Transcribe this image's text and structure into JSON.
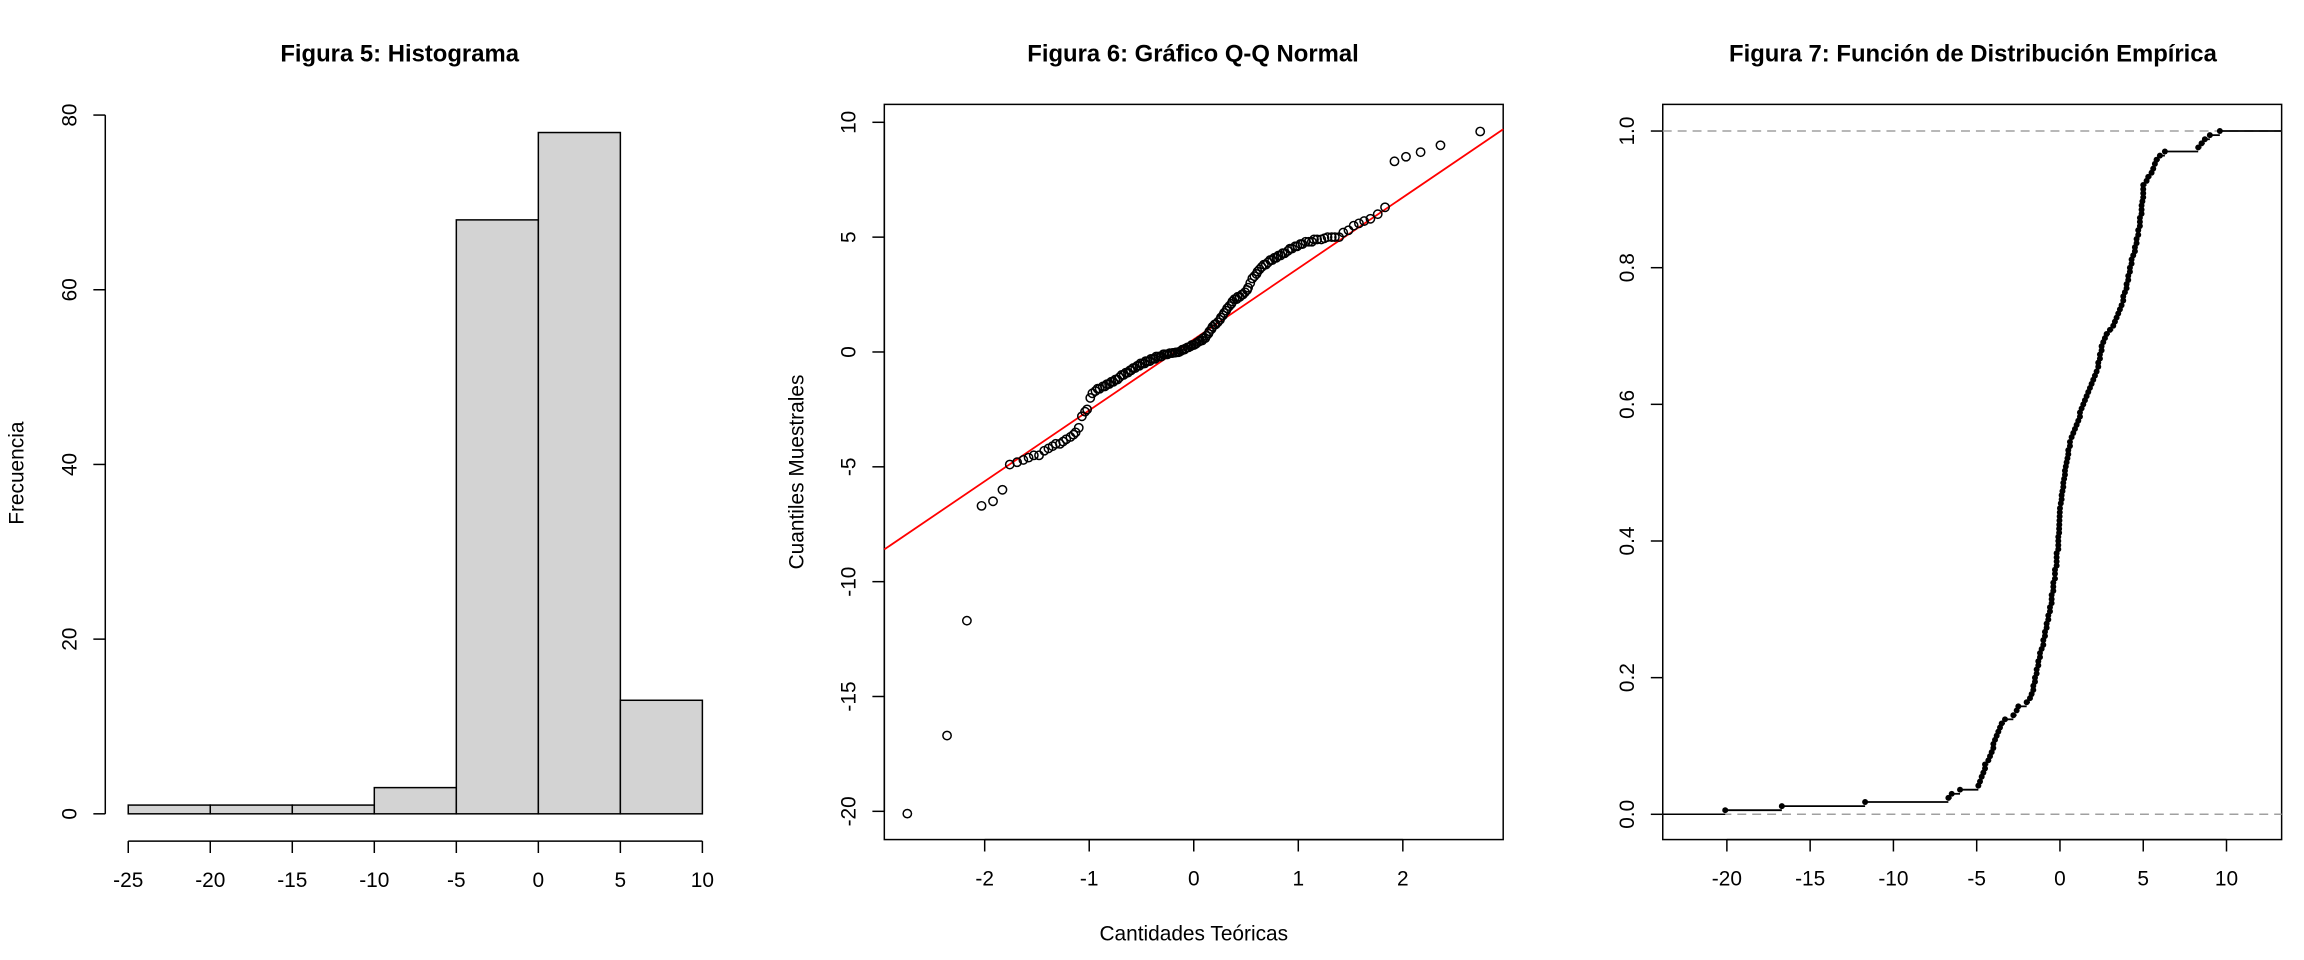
{
  "chart_data": [
    {
      "type": "histogram",
      "title": "Figura 5: Histograma",
      "ylabel": "Frecuencia",
      "bins": [
        -25,
        -20,
        -15,
        -10,
        -5,
        0,
        5,
        10
      ],
      "values": [
        1,
        1,
        1,
        3,
        68,
        78,
        13
      ],
      "color": "#d3d3d3",
      "xlim": [
        -26.4,
        11.4
      ],
      "xticks": [
        -25,
        -20,
        -15,
        -10,
        -5,
        0,
        5,
        10
      ],
      "ylim": [
        -3.12,
        81.12
      ],
      "yticks": [
        0,
        20,
        40,
        60,
        80
      ]
    },
    {
      "type": "qq",
      "title": "Figura 6: Gráfico Q-Q Normal",
      "xlabel": "Cantidades Teóricas",
      "ylabel": "Cuantiles Muestrales",
      "x": [
        -2.74,
        -2.36,
        -2.17,
        -2.03,
        -1.92,
        -1.83,
        -1.76,
        -1.69,
        -1.63,
        -1.58,
        -1.53,
        -1.48,
        -1.43,
        -1.39,
        -1.35,
        -1.32,
        -1.28,
        -1.25,
        -1.22,
        -1.18,
        -1.15,
        -1.13,
        -1.1,
        -1.07,
        -1.04,
        -1.02,
        -0.99,
        -0.97,
        -0.94,
        -0.92,
        -0.9,
        -0.87,
        -0.85,
        -0.83,
        -0.81,
        -0.79,
        -0.77,
        -0.75,
        -0.73,
        -0.71,
        -0.69,
        -0.67,
        -0.65,
        -0.63,
        -0.61,
        -0.6,
        -0.58,
        -0.56,
        -0.54,
        -0.52,
        -0.51,
        -0.49,
        -0.47,
        -0.46,
        -0.44,
        -0.42,
        -0.41,
        -0.39,
        -0.37,
        -0.36,
        -0.34,
        -0.32,
        -0.31,
        -0.29,
        -0.28,
        -0.26,
        -0.25,
        -0.23,
        -0.21,
        -0.2,
        -0.18,
        -0.17,
        -0.15,
        -0.14,
        -0.12,
        -0.11,
        -0.09,
        -0.08,
        -0.06,
        -0.05,
        -0.03,
        -0.02,
        0,
        0.02,
        0.03,
        0.05,
        0.06,
        0.08,
        0.09,
        0.11,
        0.12,
        0.14,
        0.15,
        0.17,
        0.18,
        0.2,
        0.21,
        0.23,
        0.25,
        0.26,
        0.28,
        0.29,
        0.31,
        0.32,
        0.34,
        0.36,
        0.37,
        0.39,
        0.41,
        0.42,
        0.44,
        0.46,
        0.47,
        0.49,
        0.51,
        0.52,
        0.54,
        0.56,
        0.58,
        0.6,
        0.61,
        0.63,
        0.65,
        0.67,
        0.69,
        0.71,
        0.73,
        0.75,
        0.77,
        0.79,
        0.81,
        0.83,
        0.85,
        0.87,
        0.9,
        0.92,
        0.94,
        0.97,
        0.99,
        1.02,
        1.04,
        1.07,
        1.1,
        1.13,
        1.15,
        1.18,
        1.22,
        1.25,
        1.28,
        1.32,
        1.35,
        1.39,
        1.43,
        1.48,
        1.53,
        1.58,
        1.63,
        1.69,
        1.76,
        1.83,
        1.92,
        2.03,
        2.17,
        2.36,
        2.74
      ],
      "values": [
        -20.1,
        -16.7,
        -11.7,
        -6.7,
        -6.5,
        -6.0,
        -4.9,
        -4.8,
        -4.7,
        -4.6,
        -4.5,
        -4.5,
        -4.3,
        -4.2,
        -4.1,
        -4.0,
        -4.0,
        -3.9,
        -3.8,
        -3.7,
        -3.6,
        -3.5,
        -3.3,
        -2.8,
        -2.6,
        -2.5,
        -2.0,
        -1.8,
        -1.7,
        -1.6,
        -1.6,
        -1.5,
        -1.5,
        -1.4,
        -1.4,
        -1.3,
        -1.3,
        -1.2,
        -1.2,
        -1.1,
        -1.0,
        -1.0,
        -0.9,
        -0.9,
        -0.8,
        -0.8,
        -0.7,
        -0.7,
        -0.6,
        -0.6,
        -0.5,
        -0.5,
        -0.5,
        -0.4,
        -0.4,
        -0.4,
        -0.3,
        -0.3,
        -0.3,
        -0.2,
        -0.2,
        -0.2,
        -0.2,
        -0.1,
        -0.1,
        -0.1,
        -0.1,
        -0.05,
        -0.05,
        -0.04,
        -0.03,
        -0.02,
        -0.01,
        0.0,
        0.05,
        0.1,
        0.1,
        0.15,
        0.2,
        0.2,
        0.25,
        0.3,
        0.3,
        0.35,
        0.4,
        0.45,
        0.5,
        0.5,
        0.6,
        0.6,
        0.7,
        0.8,
        0.9,
        1.0,
        1.1,
        1.2,
        1.2,
        1.3,
        1.4,
        1.5,
        1.6,
        1.7,
        1.8,
        1.9,
        2.0,
        2.1,
        2.2,
        2.3,
        2.3,
        2.4,
        2.4,
        2.5,
        2.5,
        2.6,
        2.7,
        2.8,
        3.0,
        3.2,
        3.3,
        3.4,
        3.5,
        3.6,
        3.7,
        3.8,
        3.8,
        3.9,
        4.0,
        4.0,
        4.1,
        4.1,
        4.2,
        4.2,
        4.3,
        4.3,
        4.4,
        4.5,
        4.5,
        4.6,
        4.6,
        4.7,
        4.7,
        4.8,
        4.8,
        4.8,
        4.9,
        4.9,
        4.9,
        4.95,
        5.0,
        5.0,
        5.0,
        5.0,
        5.2,
        5.3,
        5.5,
        5.6,
        5.7,
        5.8,
        6.0,
        6.3,
        8.3,
        8.5,
        8.7,
        9.0,
        9.6
      ],
      "qqline": {
        "intercept": 0.55,
        "slope": 3.09,
        "color": "#ff0000"
      },
      "xlim": [
        -2.96,
        2.96
      ],
      "xticks": [
        -2,
        -1,
        0,
        1,
        2
      ],
      "ylim": [
        -21.23,
        10.78
      ],
      "yticks": [
        -20,
        -15,
        -10,
        -5,
        0,
        5,
        10
      ]
    },
    {
      "type": "ecdf",
      "title": "Figura 7: Función de Distribución Empírica",
      "x": [
        -20.1,
        -16.7,
        -11.7,
        -6.7,
        -6.5,
        -6.0,
        -4.9,
        -4.8,
        -4.7,
        -4.6,
        -4.5,
        -4.5,
        -4.3,
        -4.2,
        -4.1,
        -4.0,
        -4.0,
        -3.9,
        -3.8,
        -3.7,
        -3.6,
        -3.5,
        -3.3,
        -2.8,
        -2.6,
        -2.5,
        -2.0,
        -1.8,
        -1.7,
        -1.6,
        -1.6,
        -1.5,
        -1.5,
        -1.4,
        -1.4,
        -1.3,
        -1.3,
        -1.2,
        -1.2,
        -1.1,
        -1.0,
        -1.0,
        -0.9,
        -0.9,
        -0.8,
        -0.8,
        -0.7,
        -0.7,
        -0.6,
        -0.6,
        -0.5,
        -0.5,
        -0.5,
        -0.4,
        -0.4,
        -0.4,
        -0.3,
        -0.3,
        -0.3,
        -0.2,
        -0.2,
        -0.2,
        -0.2,
        -0.1,
        -0.1,
        -0.1,
        -0.1,
        -0.05,
        -0.05,
        -0.04,
        -0.03,
        -0.02,
        -0.01,
        0.0,
        0.05,
        0.1,
        0.1,
        0.15,
        0.2,
        0.2,
        0.25,
        0.3,
        0.3,
        0.35,
        0.4,
        0.45,
        0.5,
        0.5,
        0.6,
        0.6,
        0.7,
        0.8,
        0.9,
        1.0,
        1.1,
        1.2,
        1.2,
        1.3,
        1.4,
        1.5,
        1.6,
        1.7,
        1.8,
        1.9,
        2.0,
        2.1,
        2.2,
        2.3,
        2.3,
        2.4,
        2.4,
        2.5,
        2.5,
        2.6,
        2.7,
        2.8,
        3.0,
        3.2,
        3.3,
        3.4,
        3.5,
        3.6,
        3.7,
        3.8,
        3.8,
        3.9,
        4.0,
        4.0,
        4.1,
        4.1,
        4.2,
        4.2,
        4.3,
        4.3,
        4.4,
        4.5,
        4.5,
        4.6,
        4.6,
        4.7,
        4.7,
        4.8,
        4.8,
        4.8,
        4.9,
        4.9,
        4.9,
        4.95,
        5.0,
        5.0,
        5.0,
        5.0,
        5.2,
        5.3,
        5.5,
        5.6,
        5.7,
        5.8,
        6.0,
        6.3,
        8.3,
        8.5,
        8.7,
        9.0,
        9.6
      ],
      "values": [
        0.006,
        0.012,
        0.018,
        0.024,
        0.03,
        0.036,
        0.042,
        0.048,
        0.055,
        0.061,
        0.067,
        0.073,
        0.079,
        0.085,
        0.091,
        0.097,
        0.103,
        0.109,
        0.115,
        0.121,
        0.127,
        0.133,
        0.139,
        0.145,
        0.152,
        0.158,
        0.164,
        0.17,
        0.176,
        0.182,
        0.188,
        0.194,
        0.2,
        0.206,
        0.212,
        0.218,
        0.224,
        0.23,
        0.236,
        0.242,
        0.248,
        0.255,
        0.261,
        0.267,
        0.273,
        0.279,
        0.285,
        0.291,
        0.297,
        0.303,
        0.309,
        0.315,
        0.321,
        0.327,
        0.333,
        0.339,
        0.345,
        0.352,
        0.358,
        0.364,
        0.37,
        0.376,
        0.382,
        0.388,
        0.394,
        0.4,
        0.406,
        0.412,
        0.418,
        0.424,
        0.43,
        0.436,
        0.442,
        0.448,
        0.455,
        0.461,
        0.467,
        0.473,
        0.479,
        0.485,
        0.491,
        0.497,
        0.503,
        0.509,
        0.515,
        0.521,
        0.527,
        0.533,
        0.539,
        0.545,
        0.552,
        0.558,
        0.564,
        0.57,
        0.576,
        0.582,
        0.588,
        0.594,
        0.6,
        0.606,
        0.612,
        0.618,
        0.624,
        0.63,
        0.636,
        0.642,
        0.648,
        0.655,
        0.661,
        0.667,
        0.673,
        0.679,
        0.685,
        0.691,
        0.697,
        0.703,
        0.709,
        0.715,
        0.721,
        0.727,
        0.733,
        0.739,
        0.745,
        0.752,
        0.758,
        0.764,
        0.77,
        0.776,
        0.782,
        0.788,
        0.794,
        0.8,
        0.806,
        0.812,
        0.818,
        0.824,
        0.83,
        0.836,
        0.842,
        0.848,
        0.855,
        0.861,
        0.867,
        0.873,
        0.879,
        0.885,
        0.891,
        0.897,
        0.903,
        0.909,
        0.915,
        0.921,
        0.927,
        0.933,
        0.939,
        0.945,
        0.952,
        0.958,
        0.964,
        0.97,
        0.976,
        0.982,
        0.988,
        0.994,
        1
      ],
      "hlines": [
        0,
        1
      ],
      "hline_color": "#a0a0a0",
      "xlim": [
        -23.85,
        13.31
      ],
      "xticks": [
        -20,
        -15,
        -10,
        -5,
        0,
        5,
        10
      ],
      "ylim": [
        -0.037,
        1.039
      ],
      "yticks": [
        {
          "value": 0,
          "label": "0.0"
        },
        0.2,
        0.4,
        0.6,
        0.8,
        {
          "value": 1,
          "label": "1.0"
        }
      ]
    }
  ]
}
